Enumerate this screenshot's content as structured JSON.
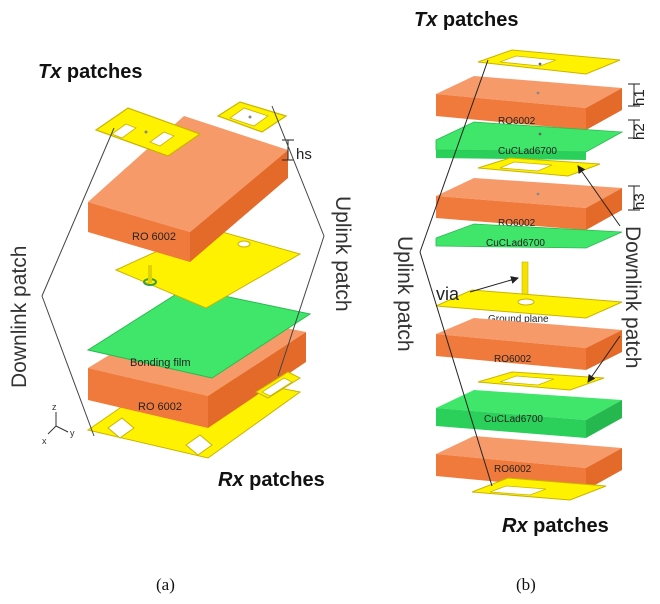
{
  "panel_a": {
    "tx_label": "Tx",
    "tx_suffix": " patches",
    "rx_label": "Rx",
    "rx_suffix": " patches",
    "hs_label": "hs",
    "ro_top": "RO 6002",
    "bonding_film": "Bonding film",
    "ro_bottom": "RO 6002",
    "downlink": "Downlink patch",
    "uplink": "Uplink patch",
    "axis_z": "z",
    "axis_y": "y",
    "axis_x": "x",
    "caption": "(a)"
  },
  "panel_b": {
    "tx_label": "Tx",
    "tx_suffix": " patches",
    "rx_label": "Rx",
    "rx_suffix": " patches",
    "h1_label": "h1",
    "h2_label": "h2",
    "h3_label": "h3",
    "ro_1": "RO6002",
    "cu_1": "CuCLad6700",
    "ro_2": "RO6002",
    "cu_2": "CuCLad6700",
    "via": "via",
    "ground_plane": "Ground plane",
    "ro_3": "RO6002",
    "cu_3": "CuCLad6700",
    "ro_4": "RO6002",
    "uplink": "Uplink patch",
    "downlink": "Downlink patch",
    "caption": "(b)"
  },
  "colors": {
    "substrate_top": "#F79A6A",
    "substrate_side_left": "#F07A3C",
    "substrate_side_right": "#E46A2A",
    "green": "#3FE66A",
    "green_edge": "#2AB94F",
    "yellow": "#FFF200",
    "yellow_edge": "#C9B400"
  }
}
